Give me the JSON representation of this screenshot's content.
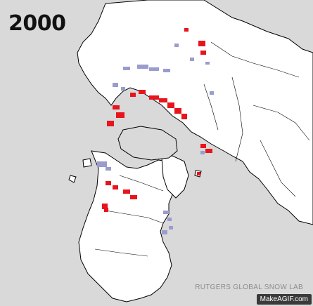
{
  "map": {
    "year": "2000",
    "credit": "RUTGERS GLOBAL SNOW LAB",
    "watermark": "MakeAGIF.com",
    "projection": "polar stereographic (Northern Hemisphere)",
    "colors": {
      "ocean": "#d9d9d9",
      "land": "#ffffff",
      "coastline": "#000000",
      "snow_above_normal": "#e8141c",
      "snow_below_normal": "#9a9ccd"
    }
  }
}
